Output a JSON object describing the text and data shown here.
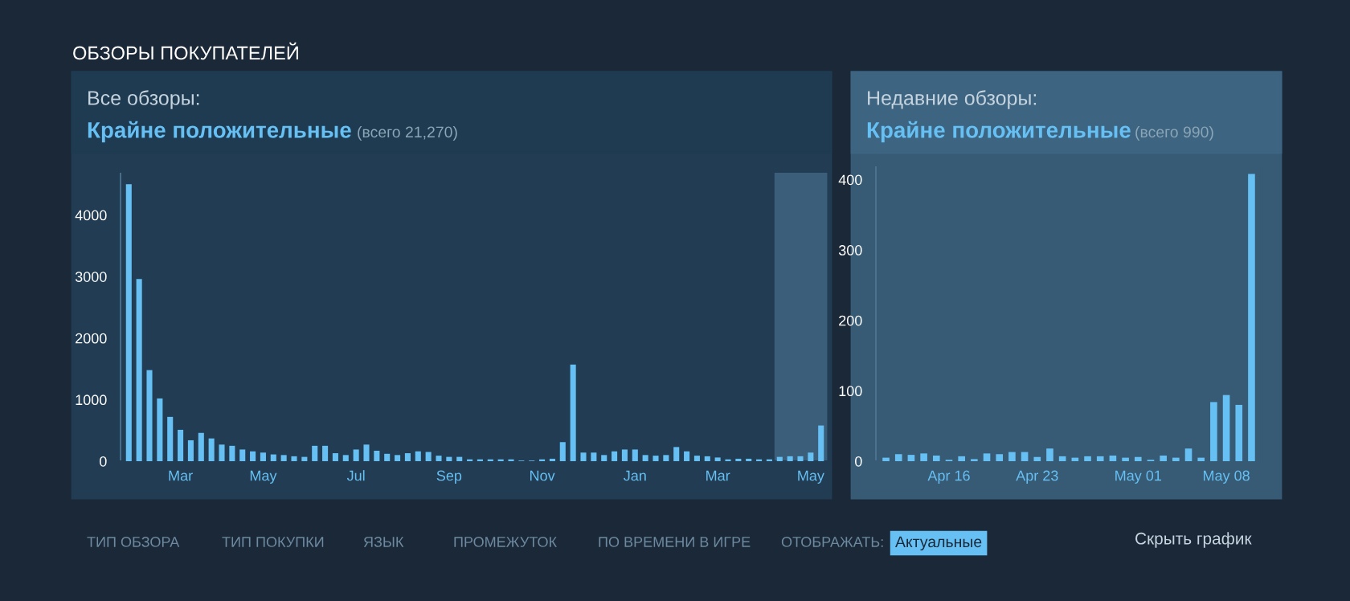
{
  "chart_data": [
    {
      "type": "bar",
      "title": "Все обзоры:",
      "subtitle": "Крайне положительные",
      "annotations": [
        "ОБЗОРЫ ПОКУПАТЕЛЕЙ",
        "(всего 21,270)",
        "ТИП ОБЗОРА",
        "ТИП ПОКУПКИ",
        "ЯЗЫК",
        "ПРОМЕЖУТОК",
        "ПО ВРЕМЕНИ В ИГРЕ",
        "ОТОБРАЖАТЬ:",
        "Актуальные"
      ],
      "categories": [
        null,
        null,
        null,
        null,
        null,
        "Mar",
        null,
        null,
        null,
        null,
        null,
        null,
        null,
        "May",
        null,
        null,
        null,
        null,
        null,
        null,
        null,
        null,
        "Jul",
        null,
        null,
        null,
        null,
        null,
        null,
        null,
        null,
        "Sep",
        null,
        null,
        null,
        null,
        null,
        null,
        null,
        null,
        "Nov",
        null,
        null,
        null,
        null,
        null,
        null,
        null,
        null,
        "Jan",
        null,
        null,
        null,
        null,
        null,
        null,
        null,
        "Mar",
        null,
        null,
        null,
        null,
        null,
        null,
        null,
        null,
        "May",
        null
      ],
      "values": [
        4500,
        2960,
        1480,
        1020,
        720,
        510,
        340,
        460,
        370,
        270,
        250,
        190,
        160,
        140,
        110,
        100,
        80,
        70,
        250,
        250,
        130,
        100,
        190,
        270,
        170,
        120,
        100,
        130,
        160,
        150,
        90,
        70,
        70,
        30,
        30,
        30,
        30,
        30,
        10,
        10,
        30,
        40,
        310,
        1570,
        140,
        140,
        100,
        160,
        190,
        190,
        100,
        90,
        100,
        230,
        160,
        90,
        80,
        60,
        30,
        40,
        40,
        30,
        30,
        70,
        80,
        80,
        140,
        580
      ],
      "color": "#66c0f4",
      "ylim": [
        0,
        4700
      ],
      "yticks": [
        0,
        1000,
        2000,
        3000,
        4000
      ],
      "grid": false
    },
    {
      "type": "bar",
      "title": "Недавние обзоры:",
      "subtitle": "Крайне положительные",
      "annotations": [
        "(всего 990)",
        "Скрыть график"
      ],
      "categories": [
        null,
        null,
        null,
        null,
        null,
        "Apr 16",
        null,
        null,
        null,
        null,
        null,
        null,
        "Apr 23",
        null,
        null,
        null,
        null,
        null,
        null,
        null,
        "May 01",
        null,
        null,
        null,
        null,
        null,
        null,
        "May 08",
        null,
        null
      ],
      "values": [
        5,
        10,
        9,
        11,
        8,
        2,
        7,
        3,
        11,
        10,
        13,
        13,
        6,
        18,
        7,
        5,
        7,
        7,
        8,
        5,
        6,
        2,
        8,
        5,
        18,
        5,
        84,
        94,
        80,
        408
      ],
      "color": "#66c0f4",
      "ylim": [
        0,
        420
      ],
      "yticks": [
        0,
        100,
        200,
        300,
        400
      ],
      "grid": false
    }
  ]
}
